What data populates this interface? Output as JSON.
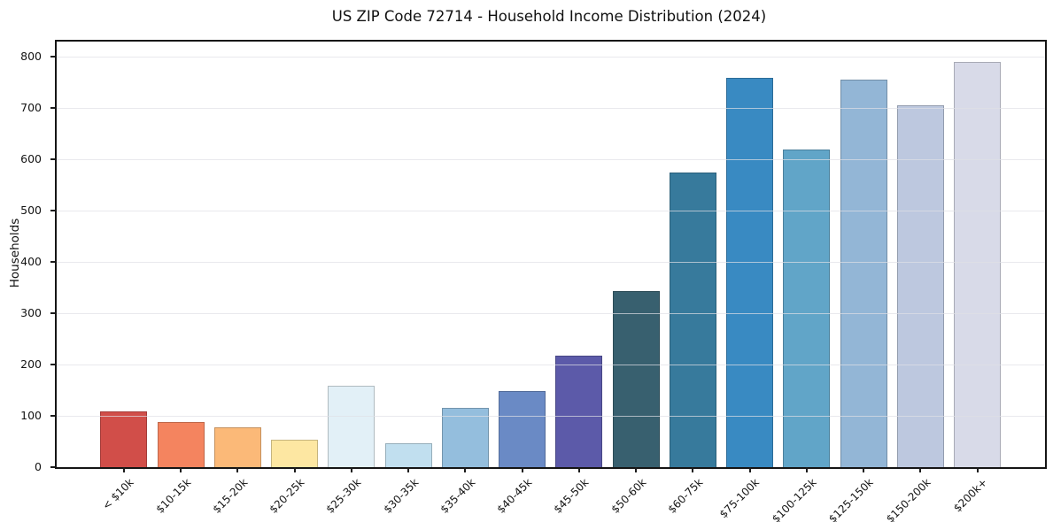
{
  "chart_data": {
    "type": "bar",
    "title": "US ZIP Code 72714 - Household Income Distribution (2024)",
    "xlabel": "",
    "ylabel": "Households",
    "categories": [
      "< $10k",
      "$10-15k",
      "$15-20k",
      "$20-25k",
      "$25-30k",
      "$30-35k",
      "$35-40k",
      "$40-45k",
      "$45-50k",
      "$50-60k",
      "$60-75k",
      "$75-100k",
      "$100-125k",
      "$125-150k",
      "$150-200k",
      "$200k+"
    ],
    "values": [
      108,
      88,
      77,
      53,
      158,
      47,
      115,
      148,
      218,
      343,
      574,
      759,
      619,
      755,
      705,
      791
    ],
    "bar_colors": [
      "#d14e49",
      "#f4845f",
      "#fbb978",
      "#fde7a2",
      "#e2f0f7",
      "#c1dfef",
      "#94bedd",
      "#6a8ac5",
      "#5c5aa9",
      "#38606f",
      "#377a9c",
      "#398ac2",
      "#61a5c8",
      "#93b6d6",
      "#bdc8df",
      "#d8dae8"
    ],
    "ylim": [
      0,
      830
    ],
    "yticks": [
      0,
      100,
      200,
      300,
      400,
      500,
      600,
      700,
      800
    ],
    "grid": "horizontal-only",
    "grid_on_top": true,
    "legend": "none",
    "background_color": "#ffffff",
    "axis_color": "#151515",
    "x_tick_label_rotation_deg": 45
  }
}
